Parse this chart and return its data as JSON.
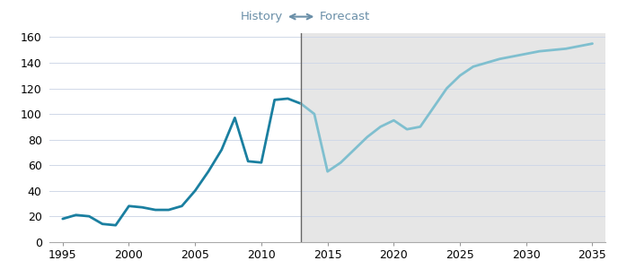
{
  "history_x": [
    1995,
    1996,
    1997,
    1998,
    1999,
    2000,
    2001,
    2002,
    2003,
    2004,
    2005,
    2006,
    2007,
    2008,
    2009,
    2010,
    2011,
    2012,
    2013
  ],
  "history_y": [
    18,
    21,
    20,
    14,
    13,
    28,
    27,
    25,
    25,
    28,
    40,
    55,
    72,
    97,
    63,
    62,
    111,
    112,
    108
  ],
  "forecast_x": [
    2013,
    2014,
    2015,
    2016,
    2017,
    2018,
    2019,
    2020,
    2021,
    2022,
    2023,
    2024,
    2025,
    2026,
    2027,
    2028,
    2029,
    2030,
    2031,
    2032,
    2033,
    2034,
    2035
  ],
  "forecast_y": [
    108,
    100,
    55,
    62,
    72,
    82,
    90,
    95,
    88,
    90,
    105,
    120,
    130,
    137,
    140,
    143,
    145,
    147,
    149,
    150,
    151,
    153,
    155
  ],
  "history_color": "#1a7fa0",
  "forecast_color": "#7fbfcf",
  "forecast_bg": "#e6e6e6",
  "divider_x": 2013,
  "xlim": [
    1994,
    2036
  ],
  "ylim": [
    0,
    163
  ],
  "yticks": [
    0,
    20,
    40,
    60,
    80,
    100,
    120,
    140,
    160
  ],
  "xticks": [
    1995,
    2000,
    2005,
    2010,
    2015,
    2020,
    2025,
    2030,
    2035
  ],
  "history_label": "History",
  "forecast_label": "Forecast",
  "label_fontsize": 9.5,
  "tick_fontsize": 9,
  "line_width": 2.0,
  "plot_bg": "#ffffff",
  "grid_color": "#d0d8e8",
  "arrow_color": "#6a8fa8",
  "divider_color": "#666666"
}
